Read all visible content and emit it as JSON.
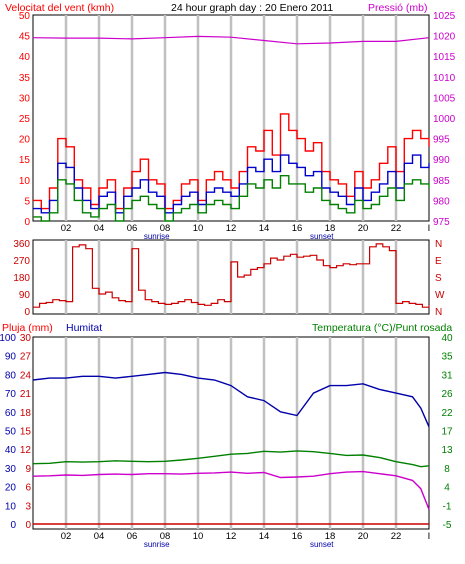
{
  "chart_data": [
    {
      "type": "line",
      "title": "24 hour graph day : 20 Enero 2011",
      "ylabel_left": "Velocitat del vent (kmh)",
      "ylabel_right": "Pressió (mb)",
      "x_ticks": [
        "02",
        "04",
        "06",
        "08",
        "10",
        "12",
        "14",
        "16",
        "18",
        "20",
        "22",
        "I"
      ],
      "markers": [
        "sunrise",
        "sunset"
      ],
      "y_left_ticks": [
        "0",
        "5",
        "10",
        "15",
        "20",
        "25",
        "30",
        "35",
        "40",
        "45",
        "50"
      ],
      "y_left_range": [
        0,
        50
      ],
      "y_right_ticks": [
        "975",
        "980",
        "985",
        "990",
        "995",
        "1000",
        "1005",
        "1010",
        "1015",
        "1020",
        "1025"
      ],
      "y_right_range": [
        975,
        1025
      ],
      "series": [
        {
          "key": "gust",
          "color": "#ff0000",
          "hours": [
            0,
            0.5,
            1,
            1.5,
            2,
            2.5,
            3,
            3.5,
            4,
            4.5,
            5,
            5.5,
            6,
            6.5,
            7,
            7.5,
            8,
            8.5,
            9,
            9.5,
            10,
            10.5,
            11,
            11.5,
            12,
            12.5,
            13,
            13.5,
            14,
            14.5,
            15,
            15.5,
            16,
            16.5,
            17,
            17.5,
            18,
            18.5,
            19,
            19.5,
            20,
            20.5,
            21,
            21.5,
            22,
            22.5,
            23,
            23.5,
            24
          ],
          "values": [
            5,
            3,
            8,
            20,
            18,
            10,
            8,
            4,
            8,
            10,
            3,
            8,
            12,
            15,
            10,
            9,
            3,
            5,
            9,
            10,
            5,
            10,
            12,
            10,
            8,
            12,
            18,
            17,
            22,
            16,
            26,
            22,
            20,
            17,
            19,
            12,
            10,
            9,
            6,
            12,
            8,
            10,
            14,
            18,
            12,
            20,
            22,
            20,
            18
          ]
        },
        {
          "key": "wind",
          "color": "#0000cc",
          "hours": [
            0,
            0.5,
            1,
            1.5,
            2,
            2.5,
            3,
            3.5,
            4,
            4.5,
            5,
            5.5,
            6,
            6.5,
            7,
            7.5,
            8,
            8.5,
            9,
            9.5,
            10,
            10.5,
            11,
            11.5,
            12,
            12.5,
            13,
            13.5,
            14,
            14.5,
            15,
            15.5,
            16,
            16.5,
            17,
            17.5,
            18,
            18.5,
            19,
            19.5,
            20,
            20.5,
            21,
            21.5,
            22,
            22.5,
            23,
            23.5,
            24
          ],
          "values": [
            3,
            2,
            5,
            14,
            13,
            8,
            5,
            3,
            6,
            7,
            2,
            6,
            8,
            10,
            7,
            6,
            2,
            4,
            6,
            7,
            4,
            7,
            8,
            7,
            6,
            9,
            13,
            12,
            15,
            12,
            16,
            14,
            13,
            11,
            12,
            8,
            7,
            6,
            4,
            8,
            5,
            7,
            9,
            12,
            8,
            14,
            16,
            13,
            14
          ]
        },
        {
          "key": "wind_min",
          "color": "#008000",
          "hours": [
            0,
            0.5,
            1,
            1.5,
            2,
            2.5,
            3,
            3.5,
            4,
            4.5,
            5,
            5.5,
            6,
            6.5,
            7,
            7.5,
            8,
            8.5,
            9,
            9.5,
            10,
            10.5,
            11,
            11.5,
            12,
            12.5,
            13,
            13.5,
            14,
            14.5,
            15,
            15.5,
            16,
            16.5,
            17,
            17.5,
            18,
            18.5,
            19,
            19.5,
            20,
            20.5,
            21,
            21.5,
            22,
            22.5,
            23,
            23.5,
            24
          ],
          "values": [
            1,
            0,
            2,
            10,
            9,
            5,
            2,
            1,
            3,
            4,
            0,
            3,
            5,
            6,
            4,
            3,
            0,
            2,
            3,
            4,
            2,
            4,
            5,
            4,
            3,
            6,
            9,
            8,
            10,
            8,
            11,
            9,
            9,
            7,
            8,
            5,
            4,
            3,
            2,
            5,
            3,
            4,
            6,
            8,
            5,
            9,
            10,
            9,
            8
          ]
        },
        {
          "key": "pressure",
          "color": "#cc00cc",
          "axis": "right",
          "hours": [
            0,
            2,
            4,
            6,
            8,
            10,
            12,
            14,
            16,
            18,
            20,
            22,
            24
          ],
          "values": [
            1019.5,
            1019.4,
            1019.4,
            1019.2,
            1019.5,
            1019.8,
            1019.6,
            1018.8,
            1018,
            1018.2,
            1018.6,
            1018.6,
            1019.5
          ]
        }
      ]
    },
    {
      "type": "line",
      "title": "",
      "y_ticks": [
        "0",
        "90",
        "180",
        "270",
        "360"
      ],
      "y_range": [
        0,
        360
      ],
      "y_right_labels": [
        "N",
        "W",
        "S",
        "E",
        "N"
      ],
      "series": [
        {
          "key": "direction",
          "color": "#cc0000",
          "hours": [
            0,
            0.4,
            0.8,
            1.2,
            1.6,
            2,
            2.4,
            2.8,
            3.2,
            3.6,
            4,
            4.4,
            4.8,
            5.2,
            5.6,
            6,
            6.4,
            6.8,
            7.2,
            7.6,
            8,
            8.4,
            8.8,
            9.2,
            9.6,
            10,
            10.4,
            10.8,
            11.2,
            11.6,
            12,
            12.4,
            12.8,
            13.2,
            13.6,
            14,
            14.4,
            14.8,
            15.2,
            15.6,
            16,
            16.4,
            16.8,
            17.2,
            17.6,
            18,
            18.4,
            18.8,
            19.2,
            19.6,
            20,
            20.4,
            20.8,
            21.2,
            21.6,
            22,
            22.4,
            22.8,
            23.2,
            23.6,
            24
          ],
          "values": [
            20,
            40,
            45,
            60,
            55,
            50,
            340,
            350,
            330,
            120,
            90,
            100,
            70,
            55,
            50,
            330,
            110,
            60,
            50,
            40,
            35,
            40,
            50,
            60,
            45,
            35,
            30,
            40,
            60,
            50,
            260,
            180,
            190,
            220,
            230,
            250,
            280,
            270,
            290,
            300,
            285,
            290,
            295,
            270,
            240,
            230,
            240,
            250,
            245,
            250,
            250,
            340,
            355,
            340,
            320,
            40,
            50,
            40,
            35,
            20,
            30
          ]
        }
      ]
    },
    {
      "type": "line",
      "title": "",
      "ylabel_left_1": "Pluja (mm)",
      "ylabel_left_2": "Humitat",
      "ylabel_right": "Temperatura (°C)/Punt rosada",
      "x_ticks": [
        "02",
        "04",
        "06",
        "08",
        "10",
        "12",
        "14",
        "16",
        "18",
        "20",
        "22",
        "I"
      ],
      "markers": [
        "sunrise",
        "sunset"
      ],
      "y_rain_ticks": [
        "0",
        "3",
        "6",
        "9",
        "12",
        "15",
        "18",
        "21",
        "24",
        "27",
        "30"
      ],
      "y_hum_ticks": [
        "0",
        "10",
        "20",
        "30",
        "40",
        "50",
        "60",
        "70",
        "80",
        "90",
        "100"
      ],
      "y_temp_ticks": [
        "-5",
        "-1",
        "4",
        "8",
        "13",
        "17",
        "22",
        "26",
        "31",
        "35",
        "40"
      ],
      "y_temp_range": [
        -5,
        40
      ],
      "series": [
        {
          "key": "humidity",
          "color": "#0000aa",
          "axis": "humidity",
          "hours": [
            0,
            1,
            2,
            3,
            4,
            5,
            6,
            7,
            8,
            9,
            10,
            11,
            12,
            13,
            14,
            15,
            16,
            17,
            18,
            19,
            20,
            21,
            22,
            23,
            23.5,
            24
          ],
          "values": [
            77,
            78,
            78,
            79,
            79,
            78,
            79,
            80,
            81,
            80,
            78,
            77,
            74,
            68,
            66,
            60,
            58,
            70,
            74,
            74,
            75,
            72,
            70,
            68,
            62,
            52
          ]
        },
        {
          "key": "temperature",
          "color": "#008000",
          "axis": "temp",
          "hours": [
            0,
            1,
            2,
            3,
            4,
            5,
            6,
            7,
            8,
            9,
            10,
            11,
            12,
            13,
            14,
            15,
            16,
            17,
            18,
            19,
            20,
            21,
            22,
            23,
            23.5,
            24
          ],
          "values": [
            9.5,
            9.6,
            10,
            9.9,
            10,
            10.2,
            10.1,
            10,
            10.1,
            10.4,
            10.8,
            11.3,
            11.8,
            12,
            12.5,
            12.3,
            12.6,
            12.4,
            12,
            11.5,
            11.6,
            11,
            10,
            9.3,
            8.8,
            9
          ]
        },
        {
          "key": "dewpoint",
          "color": "#cc00cc",
          "axis": "temp",
          "hours": [
            0,
            1,
            2,
            3,
            4,
            5,
            6,
            7,
            8,
            9,
            10,
            11,
            12,
            13,
            14,
            15,
            16,
            17,
            18,
            19,
            20,
            21,
            22,
            23,
            23.5,
            24
          ],
          "values": [
            6.5,
            6.6,
            6.8,
            6.7,
            6.9,
            7,
            6.9,
            7.1,
            7.1,
            7,
            7.2,
            7.3,
            7.5,
            7.2,
            7.4,
            6.2,
            6.3,
            6.5,
            7.1,
            7.5,
            7.6,
            7.1,
            6.6,
            5.5,
            3.5,
            -1.5
          ]
        },
        {
          "key": "rain",
          "color": "#cc0000",
          "axis": "rain",
          "hours": [
            0,
            24
          ],
          "values": [
            0,
            0
          ]
        }
      ]
    }
  ],
  "colors": {
    "grid": "#c0c0c0",
    "axis": "#000000",
    "red": "#ff0000",
    "magenta": "#cc00cc",
    "green": "#008000",
    "blue": "#0000aa"
  }
}
